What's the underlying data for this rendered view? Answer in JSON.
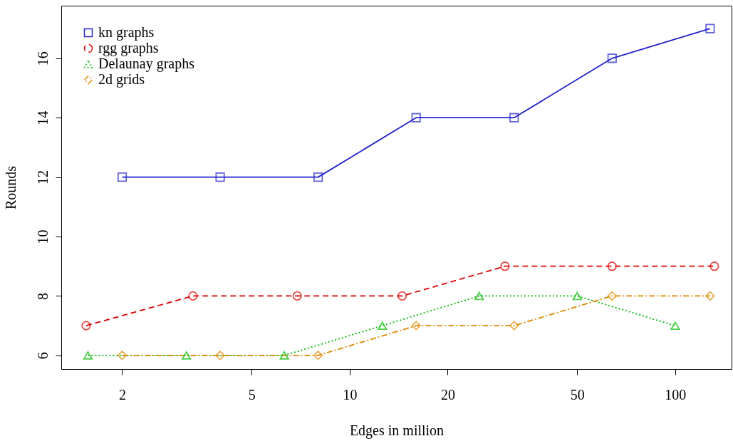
{
  "chart_data": {
    "type": "line",
    "xlabel": "Edges in million",
    "ylabel": "Rounds",
    "log": "x",
    "xlim": [
      1.3,
      149
    ],
    "xticks": [
      2,
      5,
      10,
      20,
      50,
      100
    ],
    "ylim": [
      5.54,
      17.77
    ],
    "yticks": [
      6,
      8,
      10,
      12,
      14,
      16
    ],
    "grid": false,
    "legend": "top left",
    "series": [
      {
        "name": "kn graphs",
        "color": "#2222cc",
        "marker": "square",
        "line_style": "solid",
        "x": [
          2,
          4,
          8,
          16,
          32,
          64,
          128
        ],
        "values": [
          12,
          12,
          12,
          14,
          14,
          16,
          17
        ]
      },
      {
        "name": "rgg graphs",
        "color": "#dd0000",
        "marker": "circle",
        "line_style": "dashed",
        "x": [
          1.55,
          3.3,
          6.9,
          14.5,
          30,
          64,
          132
        ],
        "values": [
          7,
          8,
          8,
          8,
          9,
          9,
          9
        ]
      },
      {
        "name": "Delaunay graphs",
        "color": "#00bb00",
        "marker": "triangle",
        "line_style": "dotted",
        "x": [
          1.57,
          3.15,
          6.3,
          12.6,
          25,
          50,
          100
        ],
        "values": [
          6,
          6,
          6,
          7,
          8,
          8,
          7
        ]
      },
      {
        "name": "2d grids",
        "color": "#dd8800",
        "marker": "diamond",
        "line_style": "dashdot",
        "x": [
          2,
          4,
          8,
          16,
          32,
          64,
          128
        ],
        "values": [
          6,
          6,
          6,
          7,
          7,
          8,
          8
        ]
      }
    ]
  }
}
